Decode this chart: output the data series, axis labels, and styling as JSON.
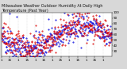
{
  "title": "Milwaukee Weather Outdoor Humidity At Daily High Temperature (Past Year)",
  "title_fontsize": 3.5,
  "bg_color": "#d8d8d8",
  "plot_bg_color": "#ffffff",
  "ylim": [
    20,
    100
  ],
  "ytick_vals": [
    30,
    40,
    50,
    60,
    70,
    80,
    90,
    100
  ],
  "ylabel_fontsize": 3.0,
  "xlabel_fontsize": 3.0,
  "blue_color": "#0000dd",
  "red_color": "#dd0000",
  "n_points": 365,
  "grid_color": "#888888",
  "seed": 42,
  "n_vgrid": 13
}
